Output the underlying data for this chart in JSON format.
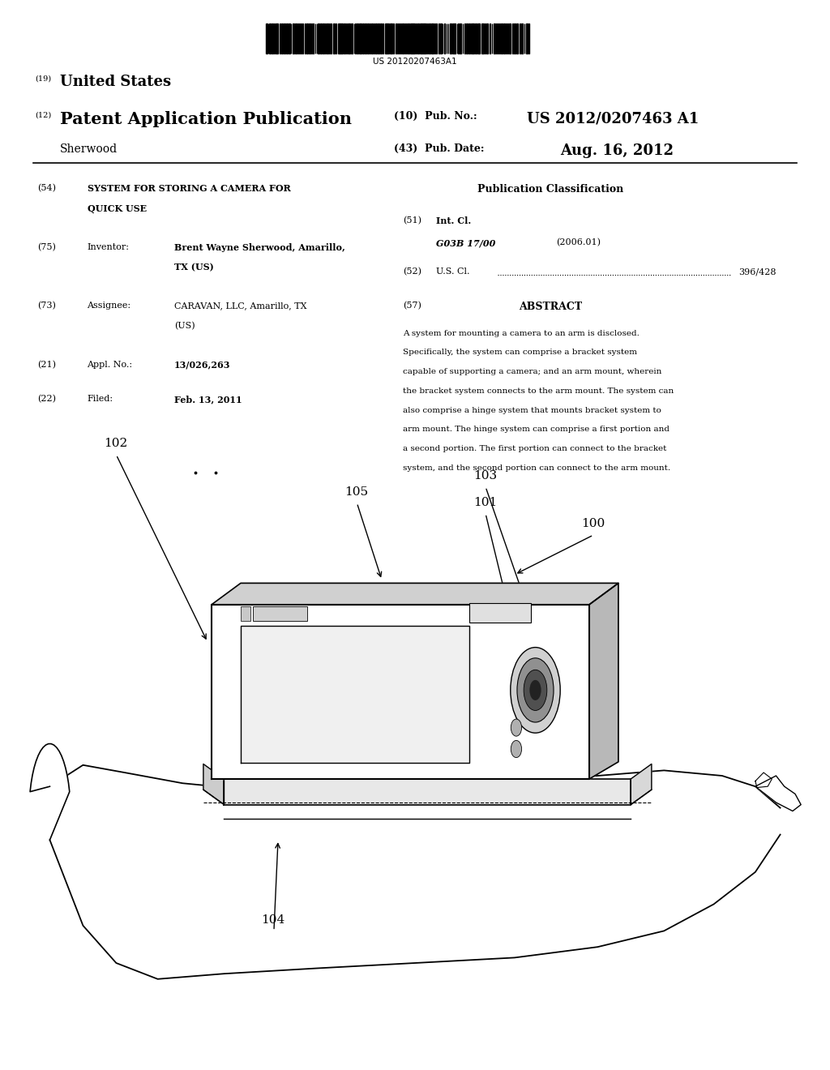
{
  "background_color": "#ffffff",
  "barcode_text": "US 20120207463A1",
  "header_19": "(19)",
  "header_19_text": "United States",
  "header_12": "(12)",
  "header_12_text": "Patent Application Publication",
  "header_name": "Sherwood",
  "header_10_label": "(10)  Pub. No.:",
  "header_10_value": "US 2012/0207463 A1",
  "header_43_label": "(43)  Pub. Date:",
  "header_43_value": "Aug. 16, 2012",
  "field_54_label": "(54)",
  "field_54_line1": "SYSTEM FOR STORING A CAMERA FOR",
  "field_54_line2": "QUICK USE",
  "field_75_label": "(75)",
  "field_75_key": "Inventor:",
  "field_75_val1": "Brent Wayne Sherwood, Amarillo,",
  "field_75_val2": "TX (US)",
  "field_73_label": "(73)",
  "field_73_key": "Assignee:",
  "field_73_val1": "CARAVAN, LLC, Amarillo, TX",
  "field_73_val2": "(US)",
  "field_21_label": "(21)",
  "field_21_key": "Appl. No.:",
  "field_21_value": "13/026,263",
  "field_22_label": "(22)",
  "field_22_key": "Filed:",
  "field_22_value": "Feb. 13, 2011",
  "pub_class_title": "Publication Classification",
  "field_51_label": "(51)",
  "field_51_key": "Int. Cl.",
  "field_51_class": "G03B 17/00",
  "field_51_year": "(2006.01)",
  "field_52_label": "(52)",
  "field_52_key": "U.S. Cl.",
  "field_52_value": "396/428",
  "field_57_label": "(57)",
  "field_57_key": "ABSTRACT",
  "abstract_lines": [
    "A system for mounting a camera to an arm is disclosed.",
    "Specifically, the system can comprise a bracket system",
    "capable of supporting a camera; and an arm mount, wherein",
    "the bracket system connects to the arm mount. The system can",
    "also comprise a hinge system that mounts bracket system to",
    "arm mount. The hinge system can comprise a first portion and",
    "a second portion. The first portion can connect to the bracket",
    "system, and the second portion can connect to the arm mount."
  ]
}
